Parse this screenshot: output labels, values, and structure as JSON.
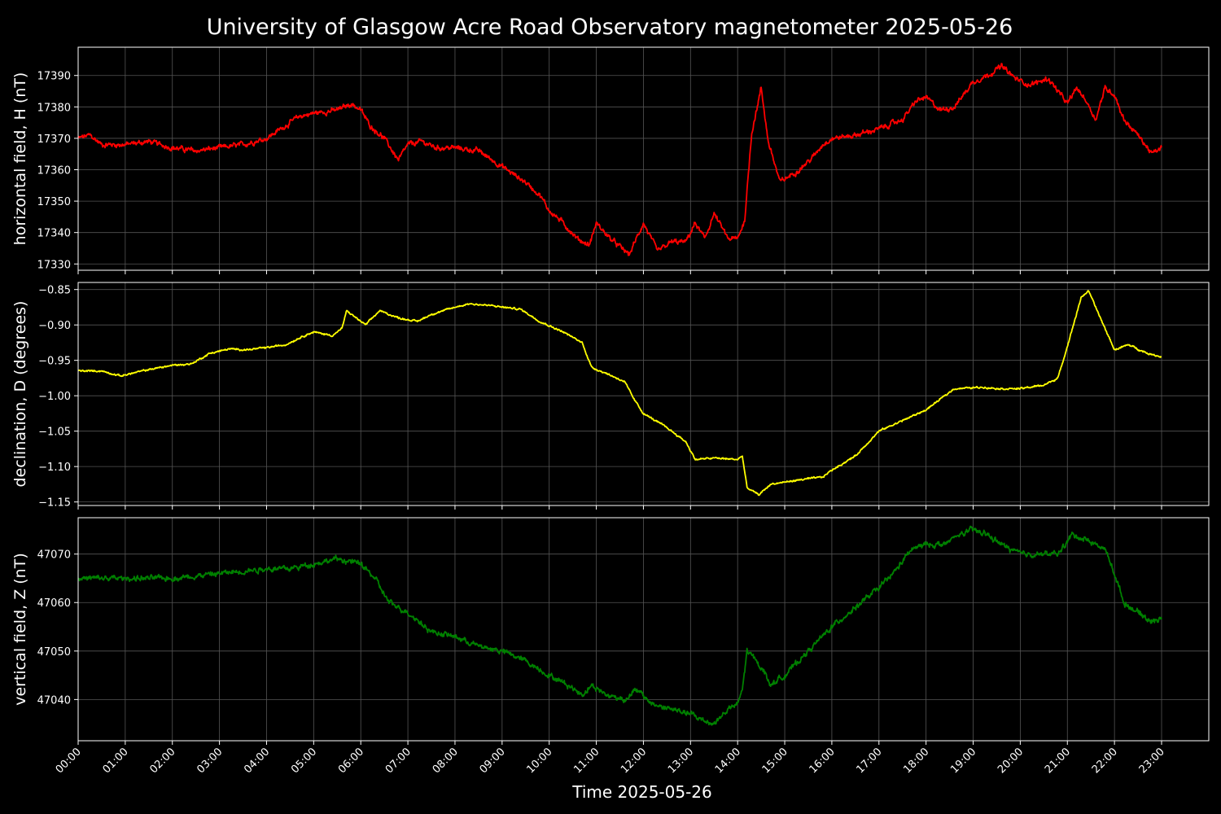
{
  "chart_data": {
    "type": "line",
    "title": "University of Glasgow Acre Road Observatory magnetometer 2025-05-26",
    "xlabel": "Time 2025-05-26",
    "background": "#000000",
    "grid": true,
    "x_ticks": [
      "00:00",
      "01:00",
      "02:00",
      "03:00",
      "04:00",
      "05:00",
      "06:00",
      "07:00",
      "08:00",
      "09:00",
      "10:00",
      "11:00",
      "12:00",
      "13:00",
      "14:00",
      "15:00",
      "16:00",
      "17:00",
      "18:00",
      "19:00",
      "20:00",
      "21:00",
      "22:00",
      "23:00"
    ],
    "xlim_hours": [
      -1.0,
      24.0
    ],
    "panels": [
      {
        "ylabel": "horizontal field, H (nT)",
        "color": "#ff0000",
        "ylim": [
          17328,
          17399
        ],
        "yticks": [
          17330,
          17340,
          17350,
          17360,
          17370,
          17380,
          17390
        ],
        "tick_labels": [
          "17330",
          "17340",
          "17350",
          "17360",
          "17370",
          "17380",
          "17390"
        ],
        "noise": 1.0,
        "points": [
          [
            0,
            17370
          ],
          [
            0.25,
            17371
          ],
          [
            0.5,
            17368
          ],
          [
            1,
            17368
          ],
          [
            1.5,
            17369
          ],
          [
            2,
            17367
          ],
          [
            2.5,
            17366
          ],
          [
            3,
            17367
          ],
          [
            3.5,
            17368
          ],
          [
            4,
            17370
          ],
          [
            4.3,
            17373
          ],
          [
            4.7,
            17377
          ],
          [
            5,
            17378
          ],
          [
            5.5,
            17379
          ],
          [
            5.8,
            17381
          ],
          [
            6.0,
            17379
          ],
          [
            6.2,
            17374
          ],
          [
            6.5,
            17370
          ],
          [
            6.8,
            17363
          ],
          [
            7.0,
            17368
          ],
          [
            7.3,
            17369
          ],
          [
            7.6,
            17367
          ],
          [
            8,
            17367
          ],
          [
            8.5,
            17366
          ],
          [
            9,
            17361
          ],
          [
            9.5,
            17356
          ],
          [
            9.8,
            17352
          ],
          [
            10,
            17347
          ],
          [
            10.3,
            17343
          ],
          [
            10.6,
            17338
          ],
          [
            10.85,
            17336
          ],
          [
            11.0,
            17343
          ],
          [
            11.3,
            17338
          ],
          [
            11.7,
            17333
          ],
          [
            12.0,
            17343
          ],
          [
            12.3,
            17334
          ],
          [
            12.6,
            17337
          ],
          [
            12.9,
            17337
          ],
          [
            13.1,
            17343
          ],
          [
            13.3,
            17338
          ],
          [
            13.5,
            17346
          ],
          [
            13.8,
            17338
          ],
          [
            14.0,
            17338
          ],
          [
            14.15,
            17344
          ],
          [
            14.3,
            17372
          ],
          [
            14.5,
            17386
          ],
          [
            14.65,
            17369
          ],
          [
            14.9,
            17356
          ],
          [
            15.1,
            17358
          ],
          [
            15.3,
            17360
          ],
          [
            15.6,
            17364
          ],
          [
            15.8,
            17368
          ],
          [
            16.0,
            17370
          ],
          [
            16.5,
            17371
          ],
          [
            17.0,
            17373
          ],
          [
            17.5,
            17376
          ],
          [
            17.8,
            17382
          ],
          [
            18.0,
            17383
          ],
          [
            18.3,
            17379
          ],
          [
            18.6,
            17380
          ],
          [
            19.0,
            17388
          ],
          [
            19.3,
            17390
          ],
          [
            19.6,
            17393
          ],
          [
            19.9,
            17389
          ],
          [
            20.2,
            17387
          ],
          [
            20.6,
            17389
          ],
          [
            20.8,
            17385
          ],
          [
            21.0,
            17381
          ],
          [
            21.2,
            17386
          ],
          [
            21.4,
            17382
          ],
          [
            21.6,
            17376
          ],
          [
            21.8,
            17386
          ],
          [
            22.0,
            17384
          ],
          [
            22.2,
            17376
          ],
          [
            22.5,
            17371
          ],
          [
            22.8,
            17365
          ],
          [
            23.0,
            17367
          ]
        ]
      },
      {
        "ylabel": "declination, D (degrees)",
        "color": "#ffff00",
        "ylim": [
          -1.155,
          -0.84
        ],
        "yticks": [
          -1.15,
          -1.1,
          -1.05,
          -1.0,
          -0.95,
          -0.9,
          -0.85
        ],
        "tick_labels": [
          "−1.15",
          "−1.10",
          "−1.05",
          "−1.00",
          "−0.95",
          "−0.90",
          "−0.85"
        ],
        "noise": 0.0015,
        "points": [
          [
            0,
            -0.965
          ],
          [
            0.5,
            -0.965
          ],
          [
            0.9,
            -0.972
          ],
          [
            1.5,
            -0.963
          ],
          [
            2.0,
            -0.957
          ],
          [
            2.4,
            -0.955
          ],
          [
            2.8,
            -0.94
          ],
          [
            3.2,
            -0.934
          ],
          [
            3.6,
            -0.935
          ],
          [
            4.0,
            -0.932
          ],
          [
            4.4,
            -0.928
          ],
          [
            4.8,
            -0.915
          ],
          [
            5.0,
            -0.91
          ],
          [
            5.4,
            -0.915
          ],
          [
            5.6,
            -0.905
          ],
          [
            5.7,
            -0.88
          ],
          [
            6.1,
            -0.9
          ],
          [
            6.4,
            -0.88
          ],
          [
            6.8,
            -0.89
          ],
          [
            7.2,
            -0.895
          ],
          [
            7.5,
            -0.885
          ],
          [
            8.0,
            -0.875
          ],
          [
            8.3,
            -0.87
          ],
          [
            8.8,
            -0.873
          ],
          [
            9.4,
            -0.878
          ],
          [
            9.8,
            -0.895
          ],
          [
            10.3,
            -0.91
          ],
          [
            10.7,
            -0.925
          ],
          [
            10.9,
            -0.96
          ],
          [
            11.2,
            -0.968
          ],
          [
            11.6,
            -0.98
          ],
          [
            11.8,
            -1.005
          ],
          [
            12.0,
            -1.025
          ],
          [
            12.5,
            -1.045
          ],
          [
            12.9,
            -1.065
          ],
          [
            13.1,
            -1.09
          ],
          [
            13.5,
            -1.088
          ],
          [
            14.0,
            -1.09
          ],
          [
            14.1,
            -1.085
          ],
          [
            14.2,
            -1.13
          ],
          [
            14.45,
            -1.14
          ],
          [
            14.7,
            -1.125
          ],
          [
            15.0,
            -1.122
          ],
          [
            15.4,
            -1.118
          ],
          [
            15.8,
            -1.115
          ],
          [
            16.0,
            -1.105
          ],
          [
            16.5,
            -1.085
          ],
          [
            17.0,
            -1.05
          ],
          [
            17.5,
            -1.035
          ],
          [
            18.0,
            -1.02
          ],
          [
            18.3,
            -1.005
          ],
          [
            18.6,
            -0.99
          ],
          [
            19.2,
            -0.988
          ],
          [
            19.6,
            -0.99
          ],
          [
            20.0,
            -0.99
          ],
          [
            20.5,
            -0.985
          ],
          [
            20.8,
            -0.975
          ],
          [
            21.0,
            -0.93
          ],
          [
            21.3,
            -0.86
          ],
          [
            21.45,
            -0.852
          ],
          [
            21.6,
            -0.875
          ],
          [
            21.8,
            -0.905
          ],
          [
            22.0,
            -0.935
          ],
          [
            22.3,
            -0.928
          ],
          [
            22.7,
            -0.94
          ],
          [
            23.0,
            -0.945
          ]
        ]
      },
      {
        "ylabel": "vertical field, Z (nT)",
        "color": "#008000",
        "ylim": [
          47031.5,
          47077.5
        ],
        "yticks": [
          47040,
          47050,
          47060,
          47070
        ],
        "tick_labels": [
          "47040",
          "47050",
          "47060",
          "47070"
        ],
        "noise": 0.7,
        "points": [
          [
            0,
            47065
          ],
          [
            1,
            47065
          ],
          [
            2,
            47065
          ],
          [
            3,
            47066
          ],
          [
            4,
            47067
          ],
          [
            4.5,
            47067
          ],
          [
            5,
            47068
          ],
          [
            5.5,
            47069
          ],
          [
            6.0,
            47068
          ],
          [
            6.3,
            47065
          ],
          [
            6.6,
            47060
          ],
          [
            7.0,
            47058
          ],
          [
            7.5,
            47054
          ],
          [
            8.0,
            47053
          ],
          [
            8.5,
            47051
          ],
          [
            9.0,
            47050
          ],
          [
            9.5,
            47048
          ],
          [
            10.0,
            47045
          ],
          [
            10.4,
            47043
          ],
          [
            10.7,
            47041
          ],
          [
            10.9,
            47043
          ],
          [
            11.2,
            47041
          ],
          [
            11.6,
            47040
          ],
          [
            11.85,
            47042
          ],
          [
            12.2,
            47039
          ],
          [
            12.6,
            47038
          ],
          [
            13.0,
            47037
          ],
          [
            13.2,
            47036
          ],
          [
            13.5,
            47035
          ],
          [
            13.8,
            47038
          ],
          [
            14.0,
            47039
          ],
          [
            14.1,
            47042
          ],
          [
            14.2,
            47050
          ],
          [
            14.4,
            47048
          ],
          [
            14.55,
            47046
          ],
          [
            14.7,
            47043
          ],
          [
            15.0,
            47045
          ],
          [
            15.3,
            47048
          ],
          [
            15.6,
            47051
          ],
          [
            16.0,
            47055
          ],
          [
            16.5,
            47059
          ],
          [
            17.0,
            47063
          ],
          [
            17.3,
            47066
          ],
          [
            17.7,
            47071
          ],
          [
            18.0,
            47072
          ],
          [
            18.4,
            47072
          ],
          [
            18.7,
            47074
          ],
          [
            19.0,
            47075
          ],
          [
            19.3,
            47074
          ],
          [
            19.6,
            47072
          ],
          [
            20.0,
            47070
          ],
          [
            20.5,
            47070
          ],
          [
            20.8,
            47070
          ],
          [
            21.1,
            47074
          ],
          [
            21.4,
            47073
          ],
          [
            21.8,
            47071
          ],
          [
            22.0,
            47066
          ],
          [
            22.2,
            47060
          ],
          [
            22.5,
            47058
          ],
          [
            22.8,
            47056
          ],
          [
            23.0,
            47057
          ]
        ]
      }
    ]
  }
}
